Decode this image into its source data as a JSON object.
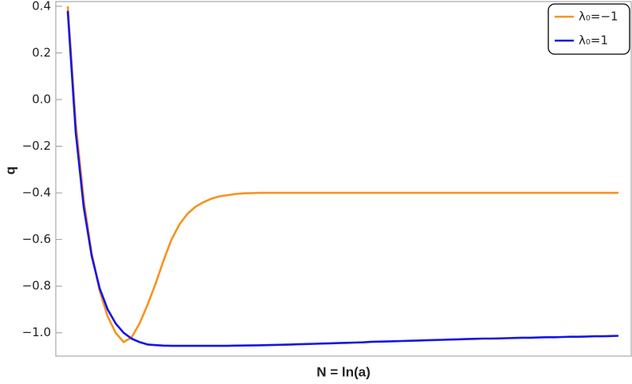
{
  "chart_data": {
    "type": "line",
    "x_label": "N = ln(a)",
    "y_label": "q",
    "categories": [
      null,
      null,
      null,
      null,
      null,
      null,
      null,
      null,
      null,
      null,
      null,
      null,
      null,
      null,
      null,
      null,
      null,
      null,
      null,
      null,
      null,
      null,
      null,
      null,
      null,
      null,
      null,
      null,
      null,
      null,
      null,
      null,
      null,
      null,
      null,
      null,
      null,
      null,
      null,
      null,
      null,
      null,
      null,
      null,
      null,
      null,
      null,
      null,
      null,
      null,
      null,
      null,
      null,
      null,
      null,
      null,
      null,
      null,
      null,
      null,
      null,
      null,
      null,
      null,
      null,
      null,
      null,
      null,
      null,
      null
    ],
    "series": [
      {
        "name": "λ₀=−1",
        "color": "#f7931e",
        "values": [
          0.4,
          -0.1,
          -0.43,
          -0.66,
          -0.82,
          -0.93,
          -1.0,
          -1.04,
          -1.02,
          -0.96,
          -0.88,
          -0.79,
          -0.69,
          -0.6,
          -0.535,
          -0.49,
          -0.46,
          -0.44,
          -0.425,
          -0.415,
          -0.41,
          -0.405,
          -0.402,
          -0.401,
          -0.4,
          -0.4,
          -0.4,
          -0.4,
          -0.4,
          -0.4,
          -0.4,
          -0.4,
          -0.4,
          -0.4,
          -0.4,
          -0.4,
          -0.4,
          -0.4,
          -0.4,
          -0.4,
          -0.4,
          -0.4,
          -0.4,
          -0.4,
          -0.4,
          -0.4,
          -0.4,
          -0.4,
          -0.4,
          -0.4,
          -0.4,
          -0.4,
          -0.4,
          -0.4,
          -0.4,
          -0.4,
          -0.4,
          -0.4,
          -0.4,
          -0.4,
          -0.4,
          -0.4,
          -0.4,
          -0.4,
          -0.4,
          -0.4,
          -0.4,
          -0.4,
          -0.4,
          -0.4
        ]
      },
      {
        "name": "λ₀=1",
        "color": "#1515e8",
        "values": [
          0.38,
          -0.14,
          -0.46,
          -0.67,
          -0.81,
          -0.9,
          -0.96,
          -1.0,
          -1.025,
          -1.04,
          -1.05,
          -1.053,
          -1.055,
          -1.056,
          -1.056,
          -1.056,
          -1.056,
          -1.056,
          -1.056,
          -1.056,
          -1.056,
          -1.055,
          -1.0546,
          -1.0542,
          -1.0536,
          -1.053,
          -1.052,
          -1.051,
          -1.05,
          -1.049,
          -1.048,
          -1.047,
          -1.046,
          -1.045,
          -1.044,
          -1.043,
          -1.042,
          -1.041,
          -1.039,
          -1.038,
          -1.037,
          -1.036,
          -1.035,
          -1.034,
          -1.033,
          -1.032,
          -1.031,
          -1.03,
          -1.029,
          -1.028,
          -1.027,
          -1.026,
          -1.025,
          -1.025,
          -1.024,
          -1.023,
          -1.022,
          -1.021,
          -1.021,
          -1.02,
          -1.019,
          -1.019,
          -1.018,
          -1.017,
          -1.017,
          -1.016,
          -1.015,
          -1.015,
          -1.014,
          -1.013
        ]
      }
    ],
    "ylim": [
      -1.1,
      0.42
    ],
    "yticks": [
      {
        "value": -1.0,
        "label": "−1.0"
      },
      {
        "value": -0.8,
        "label": "−0.8"
      },
      {
        "value": -0.6,
        "label": "−0.6"
      },
      {
        "value": -0.4,
        "label": "−0.4"
      },
      {
        "value": -0.2,
        "label": "−0.2"
      },
      {
        "value": 0,
        "label": "0.0"
      },
      0.2,
      0.4
    ],
    "grid": false,
    "legend": "upper right"
  }
}
